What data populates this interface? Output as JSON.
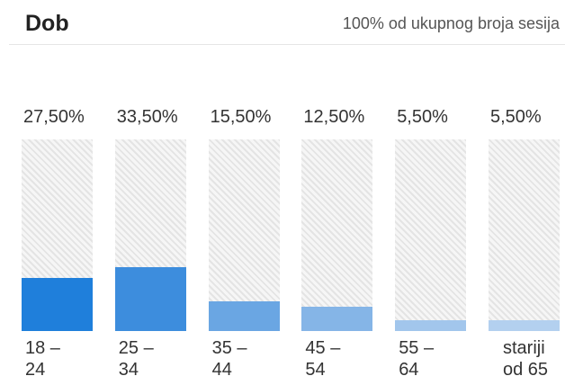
{
  "chart_data": {
    "type": "bar",
    "title": "Dob",
    "subtitle": "100% od ukupnog broja sesija",
    "categories": [
      "18 – 24",
      "25 – 34",
      "35 – 44",
      "45 – 54",
      "55 – 64",
      "stariji od 65"
    ],
    "values": [
      27.5,
      33.5,
      15.5,
      12.5,
      5.5,
      5.5
    ],
    "value_labels": [
      "27,50%",
      "33,50%",
      "15,50%",
      "12,50%",
      "5,50%",
      "5,50%"
    ],
    "colors": [
      "#1f7fdb",
      "#3d8ddd",
      "#6aa6e3",
      "#85b5e7",
      "#a2c6ec",
      "#b3d0ef"
    ],
    "ylim": [
      0,
      100
    ]
  }
}
